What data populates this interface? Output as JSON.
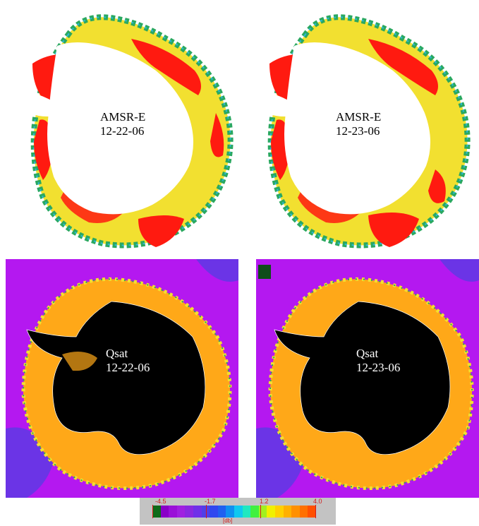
{
  "panels": [
    {
      "sensor": "AMSR-E",
      "date": "12-22-06"
    },
    {
      "sensor": "AMSR-E",
      "date": "12-23-06"
    },
    {
      "sensor": "Qsat",
      "date": "12-22-06"
    },
    {
      "sensor": "Qsat",
      "date": "12-23-06"
    }
  ],
  "colorbar": {
    "ticks": [
      "-4.5",
      "-1.7",
      "1.2",
      "4.0"
    ],
    "unit": "[db]",
    "colors": [
      "#0f6b1a",
      "#8a00c8",
      "#9a10d8",
      "#a020e0",
      "#8a28e0",
      "#7030e8",
      "#5040e8",
      "#3048f0",
      "#2060f0",
      "#1090f0",
      "#10c8f0",
      "#20e8c0",
      "#40f040",
      "#a0f020",
      "#f0f000",
      "#ffd000",
      "#ffb000",
      "#ff9000",
      "#ff7000",
      "#ff5000"
    ]
  },
  "colors": {
    "ice_red": "#ff1a10",
    "ice_yellow": "#f2e030",
    "ice_green": "#2aa860",
    "ice_cyan": "#2ab8d8",
    "qsat_purple": "#b418f0",
    "qsat_orange": "#ffa818",
    "land_black": "#000000"
  }
}
